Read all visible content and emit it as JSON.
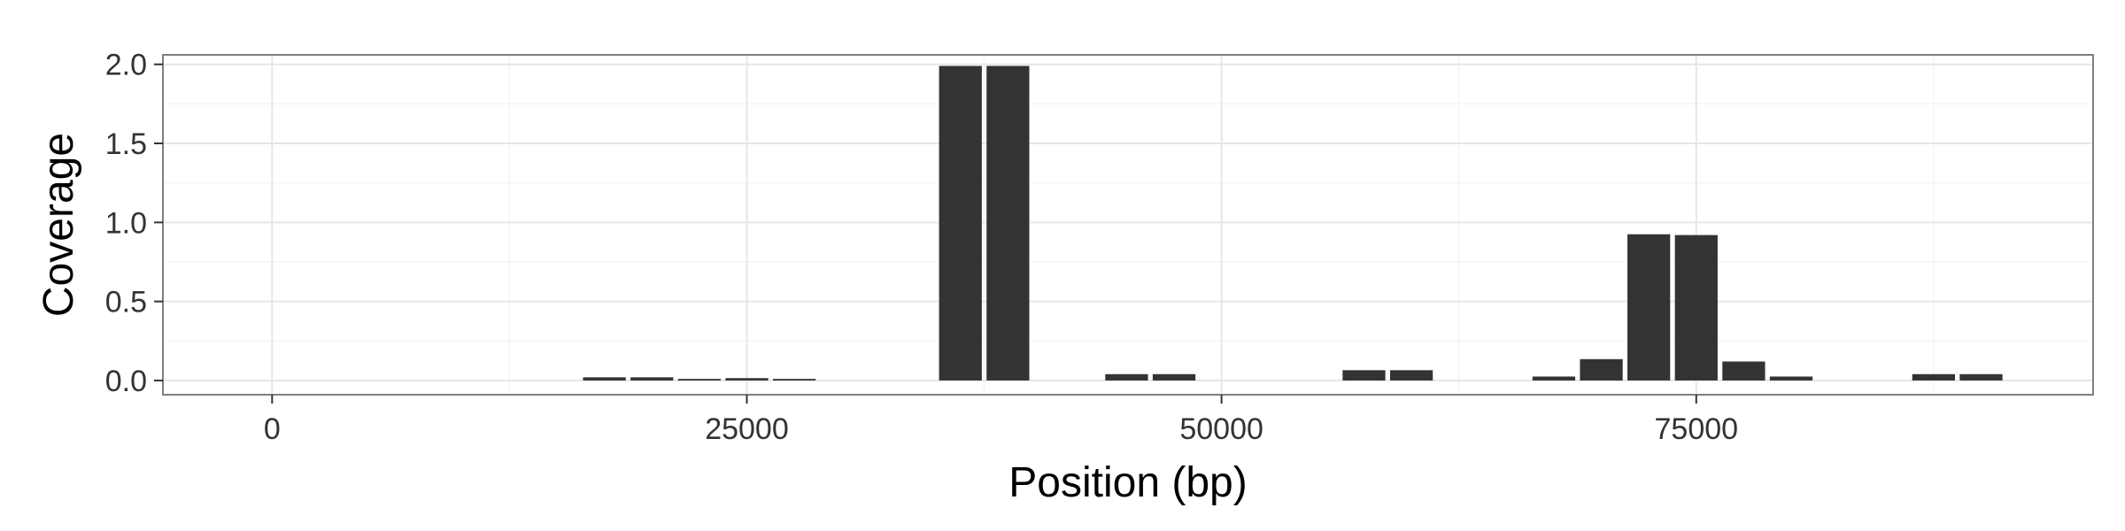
{
  "chart_data": {
    "type": "bar",
    "title": "",
    "xlabel": "Position (bp)",
    "ylabel": "Coverage",
    "xlim": [
      -5750,
      95900
    ],
    "ylim": [
      -0.09,
      2.06
    ],
    "x_ticks": [
      0,
      25000,
      50000,
      75000
    ],
    "x_tick_labels": [
      "0",
      "25000",
      "50000",
      "75000"
    ],
    "x_minor_ticks": [
      12500,
      37500,
      62500,
      87500
    ],
    "y_ticks": [
      0.0,
      0.5,
      1.0,
      1.5,
      2.0
    ],
    "y_tick_labels": [
      "0.0",
      "0.5",
      "1.0",
      "1.5",
      "2.0"
    ],
    "y_minor_ticks": [
      0.25,
      0.75,
      1.25,
      1.75
    ],
    "grid": true,
    "legend": "none",
    "bar_color": "#333333",
    "bar_width": 2250,
    "x": [
      17500,
      20000,
      22500,
      25000,
      27500,
      36250,
      38750,
      45000,
      47500,
      57500,
      60000,
      67500,
      70000,
      72500,
      75000,
      77500,
      80000,
      87500,
      90000
    ],
    "values": [
      0.02,
      0.02,
      0.01,
      0.015,
      0.01,
      1.99,
      1.99,
      0.04,
      0.04,
      0.065,
      0.065,
      0.025,
      0.135,
      0.925,
      0.92,
      0.12,
      0.025,
      0.04,
      0.04
    ]
  }
}
